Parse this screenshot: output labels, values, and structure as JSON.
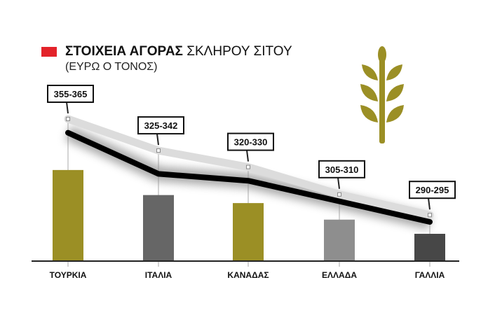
{
  "title_bold": "ΣΤΟΙΧΕΙΑ ΑΓΟΡΑΣ",
  "title_rest": "ΣΚΛΗΡΟΥ ΣΙΤΟΥ",
  "subtitle": "(ΕΥΡΩ Ο ΤΟΝΟΣ)",
  "colors": {
    "accent": "#e3232a",
    "olive": "#9b8f25",
    "line": "#000000",
    "line_high": "#dcdcdc"
  },
  "icon": "wheat-icon",
  "chart_data": {
    "type": "bar+line",
    "title": "ΣΤΟΙΧΕΙΑ ΑΓΟΡΑΣ ΣΚΛΗΡΟΥ ΣΙΤΟΥ",
    "ylabel": "(ΕΥΡΩ Ο ΤΟΝΟΣ)",
    "categories": [
      "ΤΟΥΡΚΙΑ",
      "ΙΤΑΛΙΑ",
      "ΚΑΝΑΔΑΣ",
      "ΕΛΛΑΔΑ",
      "ΓΑΛΛΙΑ"
    ],
    "labels": [
      "355-365",
      "325-342",
      "320-330",
      "305-310",
      "290-295"
    ],
    "low": [
      355,
      325,
      320,
      305,
      290
    ],
    "high": [
      365,
      342,
      330,
      310,
      295
    ],
    "bar_colors": [
      "#9b8f25",
      "#666666",
      "#9b8f25",
      "#8e8e8e",
      "#474747"
    ],
    "grid": false
  }
}
